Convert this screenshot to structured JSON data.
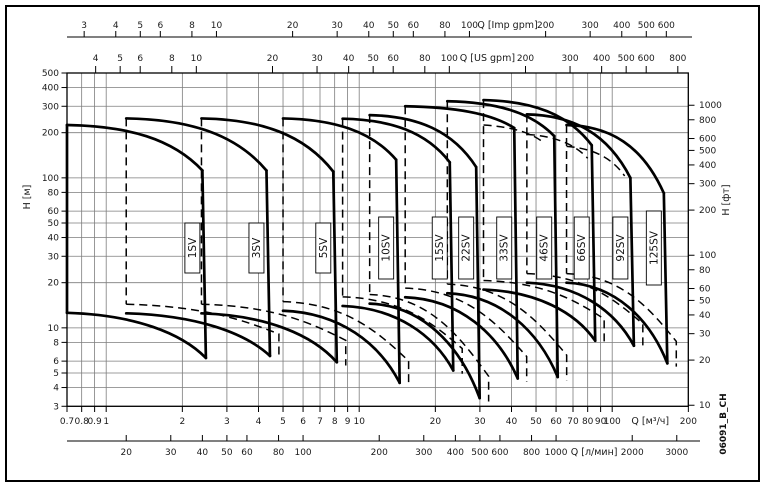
{
  "figure": {
    "code": "06091_B_CH",
    "background": "#ffffff",
    "border_color": "#000000",
    "curve_color": "#000000",
    "grid_color": "#7d7d7d"
  },
  "chart_data": {
    "type": "line",
    "description": "Vertical multistage pump family coverage chart, log-log head vs flow, performance window per model",
    "grid": "log-log, on",
    "axes": {
      "top_imp_gpm": {
        "label": "Q [Imp gpm]",
        "ticks": [
          3,
          4,
          5,
          6,
          8,
          10,
          20,
          30,
          40,
          50,
          60,
          80,
          100,
          200,
          300,
          400,
          500,
          600
        ]
      },
      "top_us_gpm": {
        "label": "Q [US gpm]",
        "ticks": [
          4,
          5,
          6,
          8,
          10,
          20,
          30,
          40,
          50,
          60,
          80,
          100,
          200,
          300,
          400,
          500,
          600,
          800
        ]
      },
      "bottom_m3h": {
        "label": "Q [м³/ч]",
        "ticks": [
          0.7,
          0.8,
          0.9,
          1,
          2,
          3,
          4,
          5,
          6,
          7,
          8,
          9,
          10,
          20,
          30,
          40,
          50,
          60,
          70,
          80,
          90,
          100,
          200
        ]
      },
      "bottom_lmin": {
        "label": "Q [л/мин]",
        "ticks": [
          20,
          30,
          40,
          50,
          60,
          80,
          100,
          200,
          300,
          400,
          500,
          600,
          800,
          1000,
          2000,
          3000
        ]
      },
      "left_head_m": {
        "label": "H [м]",
        "ticks": [
          500,
          400,
          300,
          200,
          100,
          80,
          60,
          50,
          40,
          30,
          20,
          10,
          8,
          6,
          5,
          4,
          3
        ]
      },
      "right_head_ft": {
        "label": "H [фт]",
        "ticks": [
          1000,
          800,
          600,
          500,
          400,
          300,
          200,
          100,
          80,
          60,
          50,
          40,
          30,
          20,
          10
        ]
      }
    },
    "x_range_m3h": [
      0.7,
      200
    ],
    "y_range_m": [
      3,
      500
    ],
    "pumps": [
      {
        "model": "1SV",
        "q_min_m3h": 0.7,
        "q_max_m3h": 2.4,
        "h_top_m": 225,
        "h_knee_m": 112,
        "h_bottom_left_m": 12.6,
        "h_bottom_right_m": 6.3
      },
      {
        "model": "3SV",
        "q_min_m3h": 1.2,
        "q_max_m3h": 4.3,
        "h_top_m": 249,
        "h_knee_m": 112,
        "h_bottom_left_m": 12.5,
        "h_bottom_right_m": 6.5
      },
      {
        "model": "5SV",
        "q_min_m3h": 2.38,
        "q_max_m3h": 7.9,
        "h_top_m": 249,
        "h_knee_m": 110,
        "h_bottom_left_m": 12.5,
        "h_bottom_right_m": 5.9
      },
      {
        "model": "10SV",
        "q_min_m3h": 5.0,
        "q_max_m3h": 14.0,
        "h_top_m": 249,
        "h_knee_m": 132,
        "h_bottom_left_m": 13.0,
        "h_bottom_right_m": 4.3
      },
      {
        "model": "15SV",
        "q_min_m3h": 8.6,
        "q_max_m3h": 22.8,
        "h_top_m": 248,
        "h_knee_m": 127,
        "h_bottom_left_m": 14.0,
        "h_bottom_right_m": 5.2
      },
      {
        "model": "22SV",
        "q_min_m3h": 11.0,
        "q_max_m3h": 29.0,
        "h_top_m": 262,
        "h_knee_m": 118,
        "h_bottom_left_m": 14.5,
        "h_bottom_right_m": 3.4
      },
      {
        "model": "33SV",
        "q_min_m3h": 15.2,
        "q_max_m3h": 41.0,
        "h_top_m": 300,
        "h_knee_m": 215,
        "h_bottom_left_m": 16.0,
        "h_bottom_right_m": 4.6
      },
      {
        "model": "46SV",
        "q_min_m3h": 22.3,
        "q_max_m3h": 59.0,
        "h_top_m": 324,
        "h_knee_m": 190,
        "h_bottom_left_m": 17.0,
        "h_bottom_right_m": 4.7
      },
      {
        "model": "66SV",
        "q_min_m3h": 31.0,
        "q_max_m3h": 83.0,
        "h_top_m": 330,
        "h_knee_m": 165,
        "h_bottom_left_m": 18.0,
        "h_bottom_right_m": 8.2
      },
      {
        "model": "92SV",
        "q_min_m3h": 46.0,
        "q_max_m3h": 118.0,
        "h_top_m": 265,
        "h_knee_m": 100,
        "h_bottom_left_m": 20.0,
        "h_bottom_right_m": 7.6
      },
      {
        "model": "125SV",
        "q_min_m3h": 66.0,
        "q_max_m3h": 160.0,
        "h_top_m": 225,
        "h_knee_m": 79,
        "h_bottom_left_m": 20.0,
        "h_bottom_right_m": 5.8
      }
    ],
    "dashed_top_limits": [
      {
        "q1": 31,
        "h1": 225,
        "q2": 54,
        "h2": 170
      },
      {
        "q1": 46,
        "h1": 195,
        "q2": 80,
        "h2": 135
      },
      {
        "q1": 66,
        "h1": 162,
        "q2": 112,
        "h2": 103
      }
    ],
    "legend": "solid = performance window envelope, dashed = alternative duty limit lines"
  }
}
